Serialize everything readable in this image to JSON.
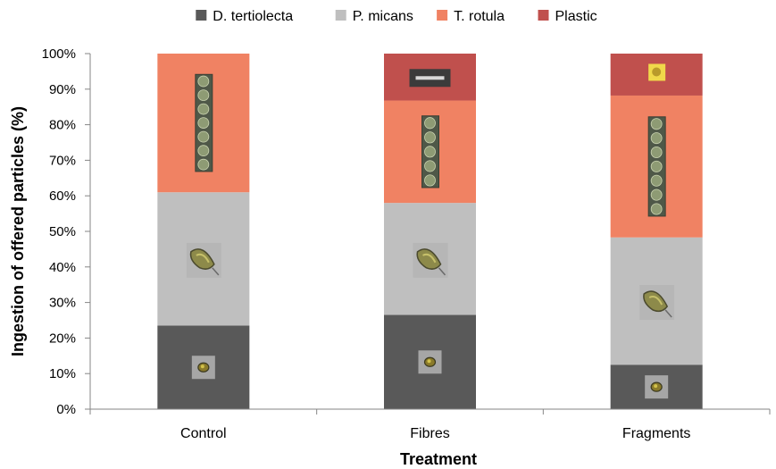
{
  "chart_data": {
    "type": "bar",
    "stacked": true,
    "categories": [
      "Control",
      "Fibres",
      "Fragments"
    ],
    "series": [
      {
        "name": "D. tertiolecta",
        "color": "#595959",
        "values": [
          23.5,
          26.5,
          12.5
        ]
      },
      {
        "name": "P. micans",
        "color": "#bfbfbf",
        "values": [
          37.5,
          31.5,
          35.8
        ]
      },
      {
        "name": "T. rotula",
        "color": "#f08263",
        "values": [
          39.0,
          28.8,
          39.9
        ]
      },
      {
        "name": "Plastic",
        "color": "#c0504d",
        "values": [
          0.0,
          13.2,
          11.8
        ]
      }
    ],
    "title": "",
    "xlabel": "Treatment",
    "ylabel": "Ingestion of offered particles (%)",
    "ylim": [
      0,
      100
    ],
    "yticks": [
      "0%",
      "10%",
      "20%",
      "30%",
      "40%",
      "50%",
      "60%",
      "70%",
      "80%",
      "90%",
      "100%"
    ],
    "legend_position": "top",
    "grid": false,
    "insets": {
      "D. tertiolecta": "flagellate-cell-micrograph",
      "P. micans": "dinoflagellate-cell-micrograph",
      "T. rotula": "diatom-chain-micrograph",
      "Plastic": [
        "microplastic-fibre-micrograph",
        "microplastic-fragment-micrograph"
      ]
    }
  }
}
